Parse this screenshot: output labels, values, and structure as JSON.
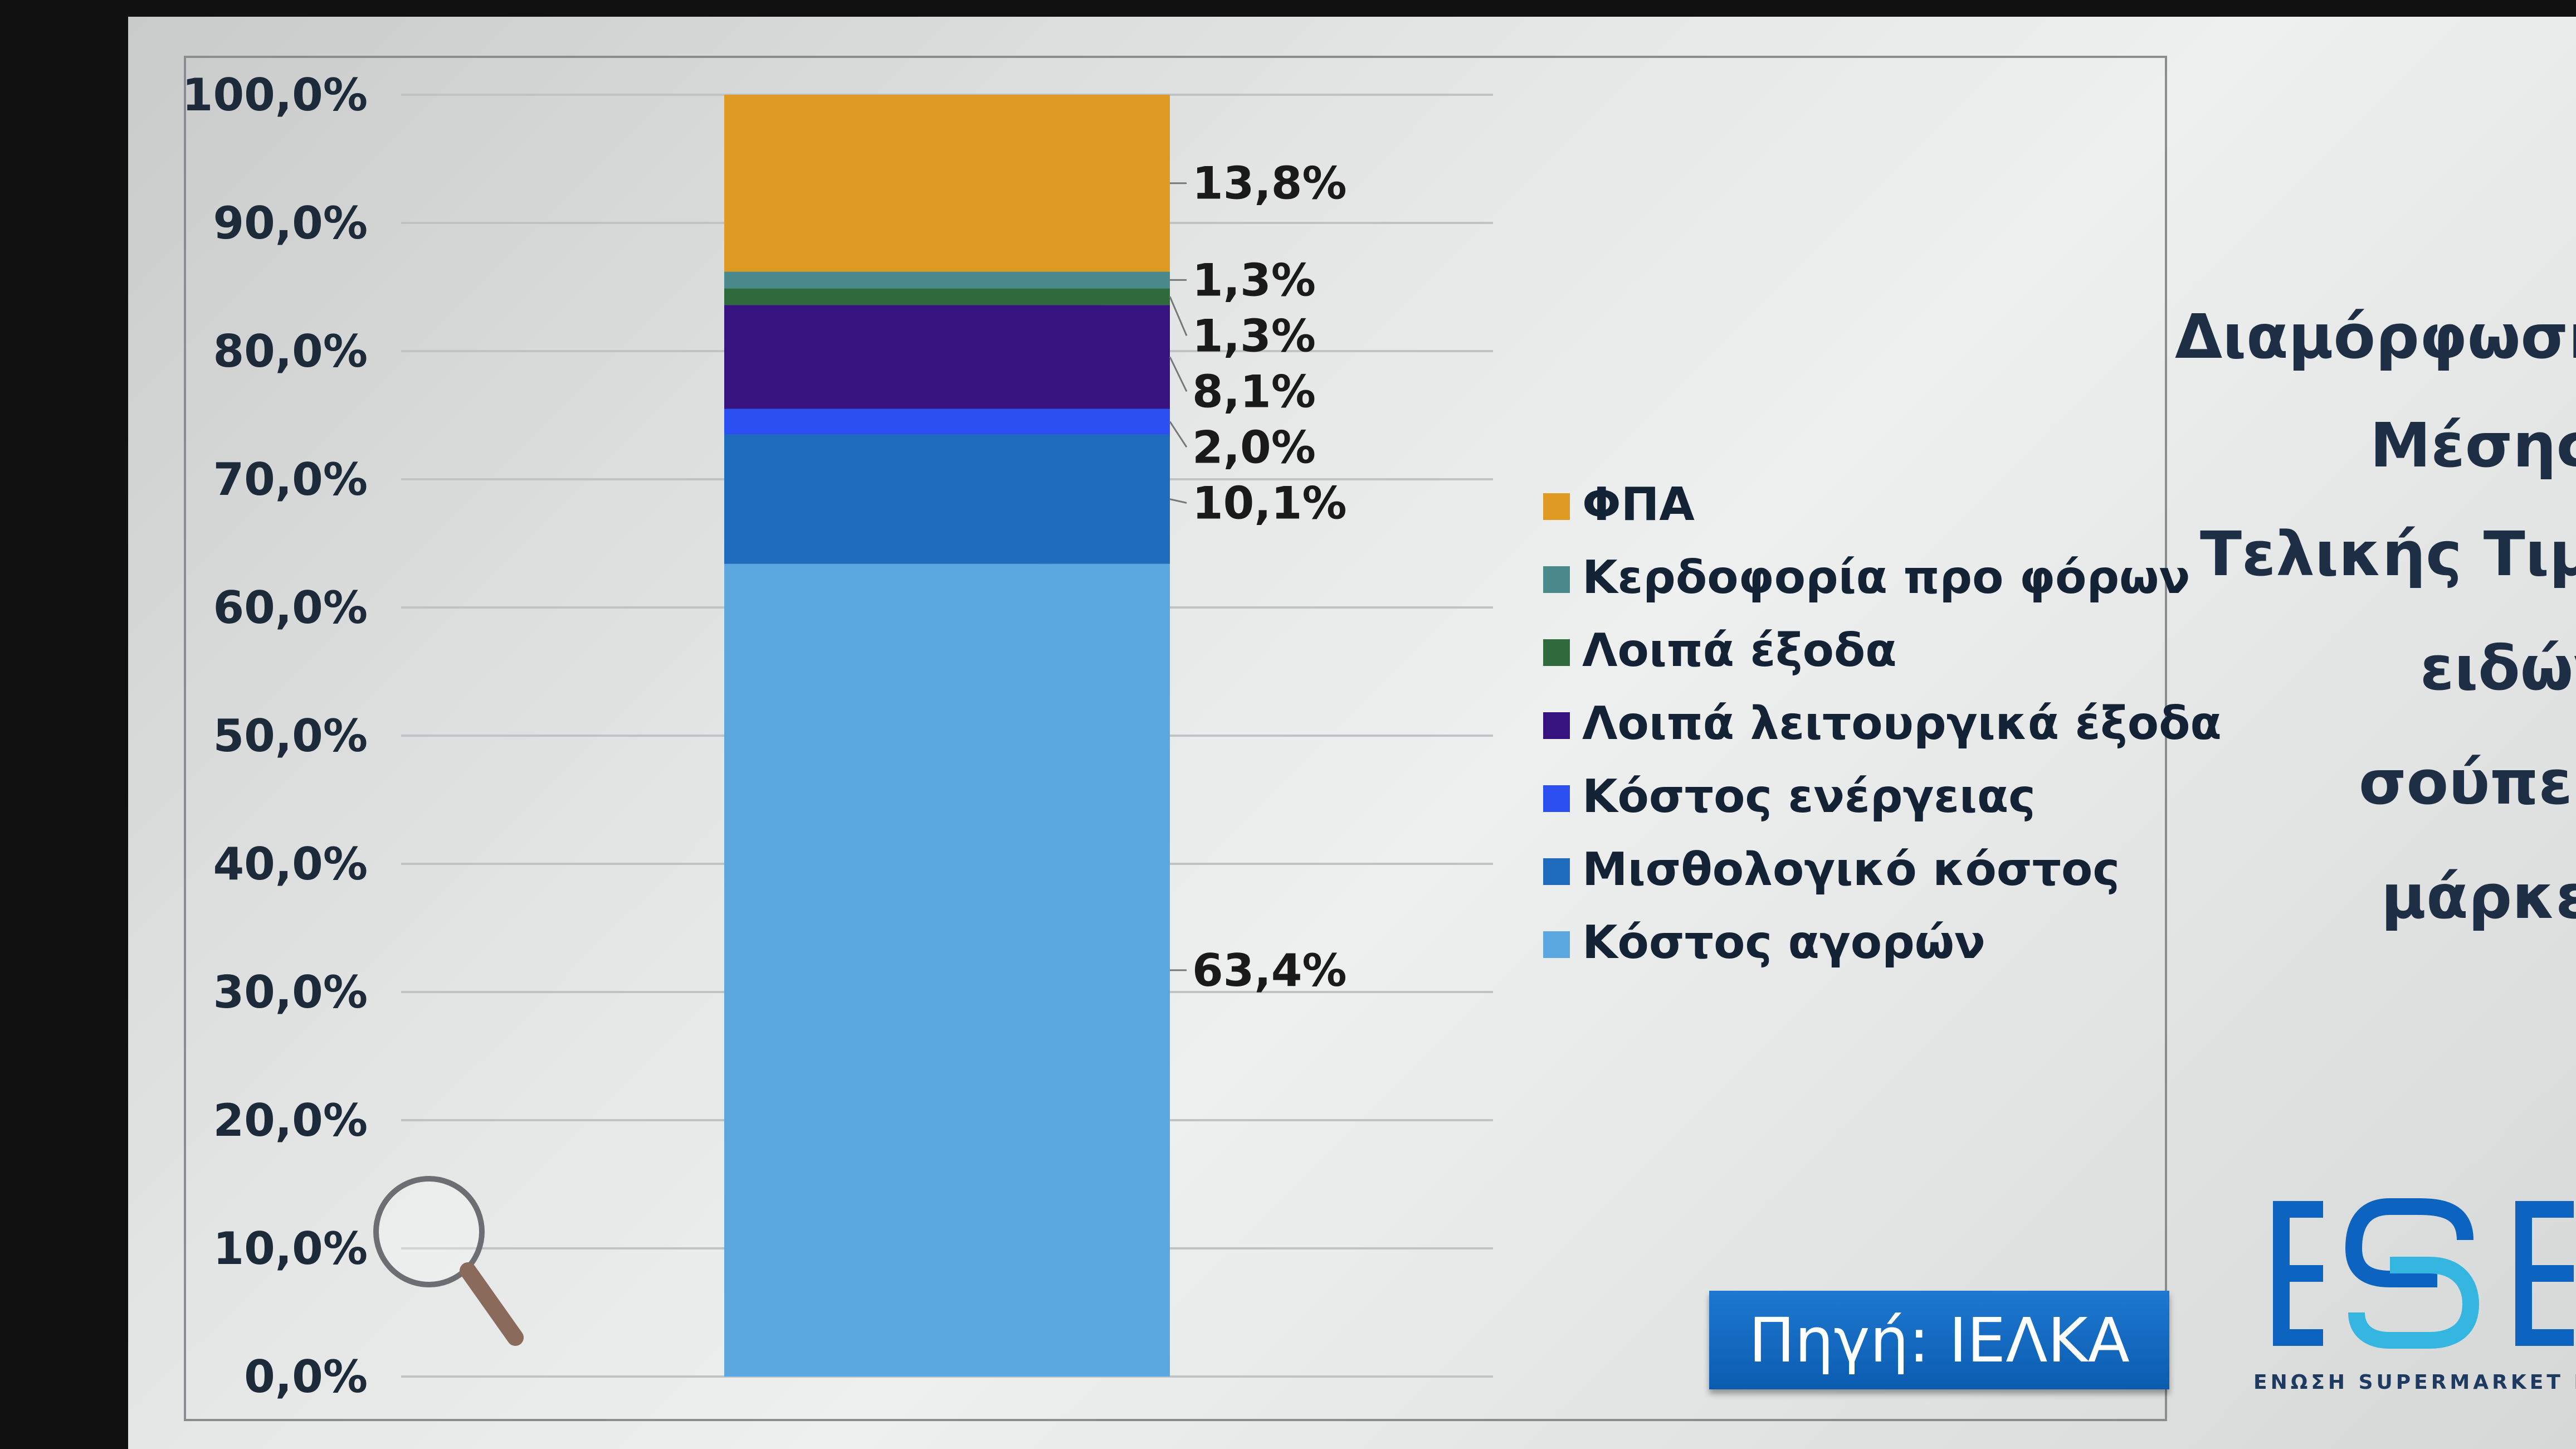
{
  "chart_data": {
    "type": "bar",
    "stacked": true,
    "categories": [
      ""
    ],
    "ylim": [
      0,
      100
    ],
    "yticks": [
      "0,0%",
      "10,0%",
      "20,0%",
      "30,0%",
      "40,0%",
      "50,0%",
      "60,0%",
      "70,0%",
      "80,0%",
      "90,0%",
      "100,0%"
    ],
    "grid": true,
    "legend_position": "right",
    "series": [
      {
        "name": "Κόστος αγορών",
        "value": 63.4,
        "label": "63,4%",
        "color": "#5ba7e0"
      },
      {
        "name": "Μισθολογικό κόστος",
        "value": 10.1,
        "label": "10,1%",
        "color": "#1f6cbf"
      },
      {
        "name": "Κόστος ενέργειας",
        "value": 2.0,
        "label": "2,0%",
        "color": "#2b4ff0"
      },
      {
        "name": "Λοιπά λειτουργικά έξοδα",
        "value": 8.1,
        "label": "8,1%",
        "color": "#36137e"
      },
      {
        "name": "Λοιπά έξοδα",
        "value": 1.3,
        "label": "1,3%",
        "color": "#2f6a3c"
      },
      {
        "name": "Κερδοφορία προ φόρων",
        "value": 1.3,
        "label": "1,3%",
        "color": "#4a8a8c"
      },
      {
        "name": "ΦΠΑ",
        "value": 13.8,
        "label": "13,8%",
        "color": "#de9a22"
      }
    ]
  },
  "title_lines": [
    "Διαμόρφωση",
    "Μέσης",
    "Τελικής Τιμής",
    "ειδών",
    "σούπερ",
    "μάρκετ"
  ],
  "source_badge": "Πηγή: ΙΕΛΚΑ",
  "logo": {
    "text": "ESE",
    "subtitle": "ΕΝΩΣΗ SUPERMARKET ΕΛΛΑΔΟΣ"
  },
  "icons": [
    "magnifier-icon"
  ]
}
